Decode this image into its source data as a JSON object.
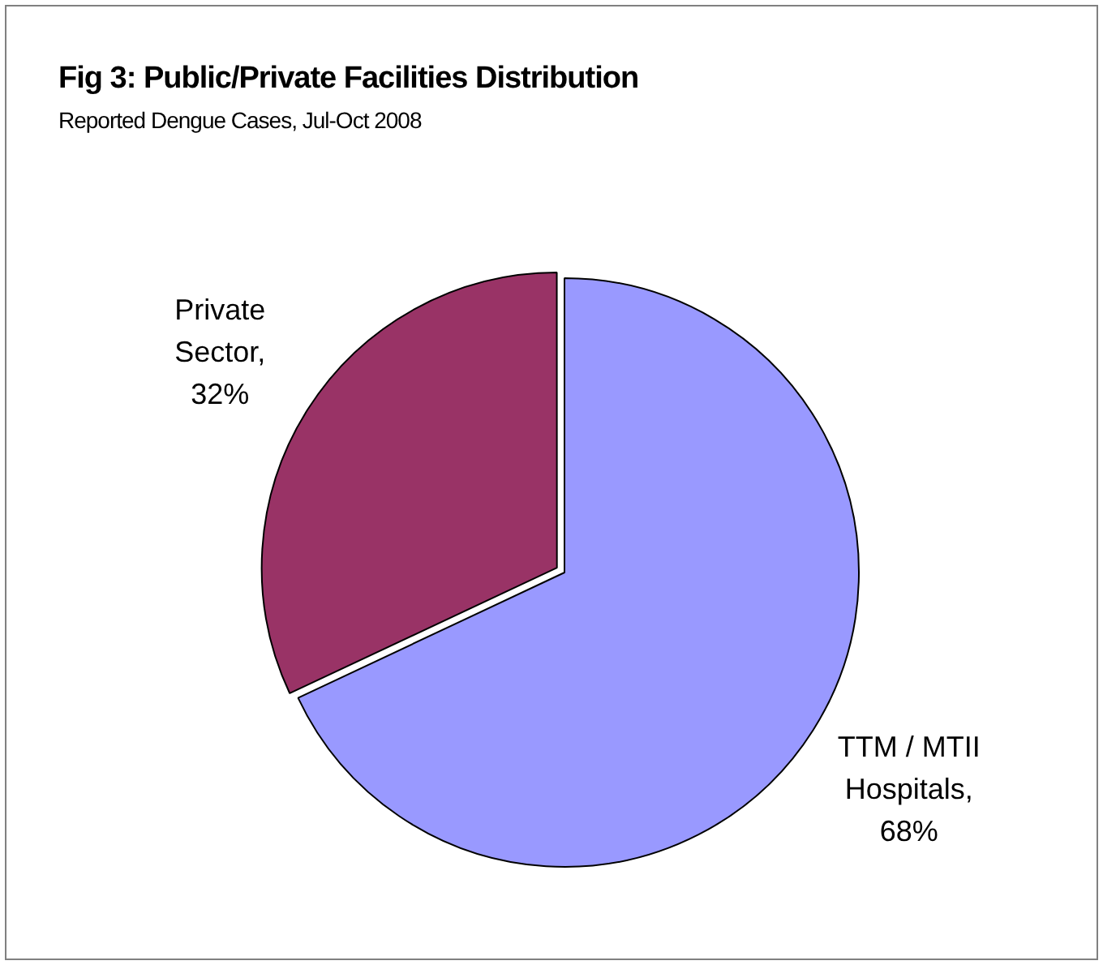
{
  "chart_data": {
    "type": "pie",
    "title": "Fig 3:  Public/Private Facilities Distribution",
    "subtitle": "Reported Dengue Cases, Jul-Oct 2008",
    "categories": [
      "TTM / MTII Hospitals",
      "Private Sector"
    ],
    "values": [
      68,
      32
    ],
    "colors": [
      "#9999ff",
      "#993366"
    ],
    "value_labels": [
      ", 68%",
      ", 32%"
    ],
    "legend": false
  }
}
